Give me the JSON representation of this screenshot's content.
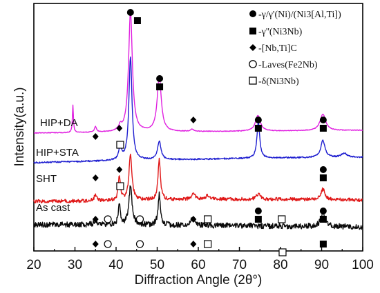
{
  "chart_data": {
    "type": "line",
    "xlabel": "Diffraction Angle (2θ°)",
    "ylabel": "Intensity(a.u.)",
    "xlim": [
      20,
      100
    ],
    "xticks": [
      20,
      30,
      40,
      50,
      60,
      70,
      80,
      90,
      100
    ],
    "yticks_labeled": false,
    "grid": false,
    "legend_position": "top-right",
    "legend": [
      {
        "marker": "circle-filled",
        "label": "-γ/γ'(Ni)/(Ni3[Al,Ti])"
      },
      {
        "marker": "square-filled",
        "label": "-γ''(Ni3Nb)"
      },
      {
        "marker": "diamond-filled",
        "label": "-[Nb,Ti]C"
      },
      {
        "marker": "circle-open",
        "label": "-Laves(Fe2Nb)"
      },
      {
        "marker": "square-open",
        "label": "-δ(Ni3Nb)"
      }
    ],
    "series": [
      {
        "name": "HIP+DA",
        "color": "#e020e0",
        "noise": 0.5,
        "baseline": [
          [
            20,
            193
          ],
          [
            40,
            192
          ],
          [
            60,
            191
          ],
          [
            80,
            190
          ],
          [
            100,
            189
          ]
        ],
        "peaks": [
          [
            29.5,
            40,
            0.15
          ],
          [
            35.0,
            8,
            0.3
          ],
          [
            41.0,
            7,
            0.4
          ],
          [
            43.5,
            175,
            0.55
          ],
          [
            50.5,
            80,
            0.6
          ],
          [
            58.5,
            3,
            0.5
          ],
          [
            74.5,
            23,
            0.7
          ],
          [
            90.3,
            24,
            0.8
          ]
        ]
      },
      {
        "name": "HIP+STA",
        "color": "#1f1fd0",
        "noise": 1.0,
        "baseline": [
          [
            20,
            236
          ],
          [
            40,
            233
          ],
          [
            60,
            231
          ],
          [
            80,
            229
          ],
          [
            100,
            228
          ]
        ],
        "peaks": [
          [
            41.0,
            22,
            0.35
          ],
          [
            43.5,
            150,
            0.45
          ],
          [
            50.5,
            27,
            0.5
          ],
          [
            74.6,
            53,
            0.4
          ],
          [
            90.3,
            25,
            0.6
          ],
          [
            95.5,
            6,
            0.8
          ]
        ]
      },
      {
        "name": "SHT",
        "color": "#e01818",
        "noise": 2.5,
        "baseline": [
          [
            20,
            292
          ],
          [
            40,
            291
          ],
          [
            60,
            289
          ],
          [
            80,
            289
          ],
          [
            100,
            290
          ]
        ],
        "peaks": [
          [
            35.0,
            8,
            0.4
          ],
          [
            40.8,
            35,
            0.3
          ],
          [
            43.5,
            65,
            0.45
          ],
          [
            50.5,
            60,
            0.35
          ],
          [
            58.8,
            8,
            0.5
          ],
          [
            62.3,
            6,
            0.5
          ],
          [
            74.6,
            8,
            0.5
          ],
          [
            90.3,
            15,
            0.6
          ]
        ]
      },
      {
        "name": "As cast",
        "color": "#0a0a0a",
        "noise": 4.0,
        "baseline": [
          [
            20,
            326
          ],
          [
            40,
            326
          ],
          [
            60,
            327
          ],
          [
            80,
            328
          ],
          [
            100,
            329
          ]
        ],
        "peaks": [
          [
            35.0,
            7,
            0.4
          ],
          [
            40.8,
            30,
            0.3
          ],
          [
            43.5,
            55,
            0.45
          ],
          [
            50.5,
            45,
            0.35
          ],
          [
            58.8,
            14,
            0.5
          ],
          [
            90.3,
            20,
            0.6
          ]
        ]
      }
    ],
    "markers": [
      {
        "shape": "circle-filled",
        "x": 43.5,
        "row": 0
      },
      {
        "shape": "square-filled",
        "x": 45.2,
        "row": 1
      },
      {
        "shape": "circle-filled",
        "x": 50.6,
        "row": 8
      },
      {
        "shape": "square-filled",
        "x": 50.6,
        "row": 9
      },
      {
        "shape": "diamond-filled",
        "x": 58.8,
        "row": 13
      },
      {
        "shape": "circle-filled",
        "x": 74.6,
        "row": 13
      },
      {
        "shape": "square-filled",
        "x": 74.6,
        "row": 14
      },
      {
        "shape": "circle-filled",
        "x": 90.4,
        "row": 13
      },
      {
        "shape": "square-filled",
        "x": 90.4,
        "row": 14
      },
      {
        "shape": "diamond-filled",
        "x": 35.0,
        "row": 15
      },
      {
        "shape": "diamond-filled",
        "x": 40.8,
        "row": 14
      },
      {
        "shape": "square-open",
        "x": 41.0,
        "row": 16
      },
      {
        "shape": "diamond-filled",
        "x": 35.0,
        "row": 20
      },
      {
        "shape": "diamond-filled",
        "x": 40.8,
        "row": 19
      },
      {
        "shape": "square-open",
        "x": 41.0,
        "row": 21
      },
      {
        "shape": "circle-filled",
        "x": 90.4,
        "row": 19
      },
      {
        "shape": "square-filled",
        "x": 90.4,
        "row": 20
      },
      {
        "shape": "diamond-filled",
        "x": 35.0,
        "row": 25
      },
      {
        "shape": "circle-open",
        "x": 38.0,
        "row": 25
      },
      {
        "shape": "circle-open",
        "x": 45.8,
        "row": 25
      },
      {
        "shape": "circle-filled",
        "x": 74.6,
        "row": 24
      },
      {
        "shape": "square-filled",
        "x": 74.6,
        "row": 25
      },
      {
        "shape": "diamond-filled",
        "x": 58.8,
        "row": 25
      },
      {
        "shape": "square-open",
        "x": 62.3,
        "row": 25
      },
      {
        "shape": "square-open",
        "x": 80.3,
        "row": 25
      },
      {
        "shape": "circle-filled",
        "x": 90.4,
        "row": 24
      },
      {
        "shape": "square-filled",
        "x": 90.4,
        "row": 25
      },
      {
        "shape": "diamond-filled",
        "x": 35.0,
        "row": 28
      },
      {
        "shape": "circle-open",
        "x": 38.0,
        "row": 28
      },
      {
        "shape": "circle-open",
        "x": 45.8,
        "row": 28
      },
      {
        "shape": "diamond-filled",
        "x": 58.8,
        "row": 28
      },
      {
        "shape": "square-open",
        "x": 62.3,
        "row": 28
      },
      {
        "shape": "square-open",
        "x": 80.5,
        "row": 29
      },
      {
        "shape": "square-filled",
        "x": 90.4,
        "row": 28
      }
    ]
  }
}
